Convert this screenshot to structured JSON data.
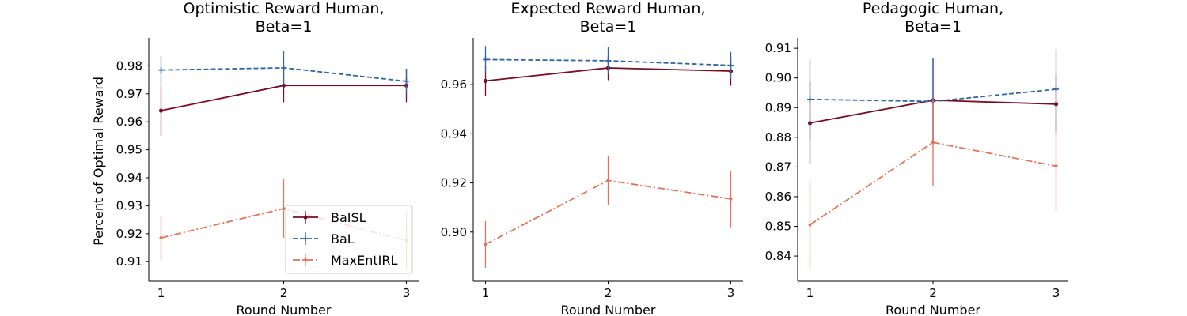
{
  "chart_data": [
    {
      "type": "line",
      "title": [
        "Optimistic Reward Human,",
        "Beta=1"
      ],
      "xlabel": "Round Number",
      "ylabel": "Percent of Optimal Reward",
      "x": [
        1,
        2,
        3
      ],
      "xticks": [
        "1",
        "2",
        "3"
      ],
      "ylim": [
        0.903,
        0.99
      ],
      "yticks": [
        "0.91",
        "0.92",
        "0.93",
        "0.94",
        "0.95",
        "0.96",
        "0.97",
        "0.98"
      ],
      "legend": "lower-right",
      "series": [
        {
          "name": "BaISL",
          "values": [
            0.964,
            0.973,
            0.973
          ],
          "err": [
            0.009,
            0.006,
            0.006
          ]
        },
        {
          "name": "BaL",
          "values": [
            0.9785,
            0.9793,
            0.9745
          ],
          "err": [
            0.005,
            0.006,
            0.0045
          ]
        },
        {
          "name": "MaxEntIRL",
          "values": [
            0.9185,
            0.929,
            0.9175
          ],
          "err": [
            0.008,
            0.0105,
            0.0105
          ]
        }
      ]
    },
    {
      "type": "line",
      "title": [
        "Expected Reward Human,",
        "Beta=1"
      ],
      "xlabel": "Round Number",
      "ylabel": "",
      "x": [
        1,
        2,
        3
      ],
      "xticks": [
        "1",
        "2",
        "3"
      ],
      "ylim": [
        0.88,
        0.979
      ],
      "yticks": [
        "0.90",
        "0.92",
        "0.94",
        "0.96"
      ],
      "legend": "",
      "series": [
        {
          "name": "BaISL",
          "values": [
            0.9615,
            0.9668,
            0.9655
          ],
          "err": [
            0.006,
            0.005,
            0.006
          ]
        },
        {
          "name": "BaL",
          "values": [
            0.9702,
            0.9697,
            0.9678
          ],
          "err": [
            0.0055,
            0.0055,
            0.0055
          ]
        },
        {
          "name": "MaxEntIRL",
          "values": [
            0.895,
            0.921,
            0.9135
          ],
          "err": [
            0.0095,
            0.0098,
            0.0115
          ]
        }
      ]
    },
    {
      "type": "line",
      "title": [
        "Pedagogic Human,",
        "Beta=1"
      ],
      "xlabel": "Round Number",
      "ylabel": "",
      "x": [
        1,
        2,
        3
      ],
      "xticks": [
        "1",
        "2",
        "3"
      ],
      "ylim": [
        0.8315,
        0.9135
      ],
      "yticks": [
        "0.84",
        "0.85",
        "0.86",
        "0.87",
        "0.88",
        "0.89",
        "0.90",
        "0.91"
      ],
      "legend": "",
      "series": [
        {
          "name": "BaISL",
          "values": [
            0.8848,
            0.8925,
            0.8912
          ],
          "err": [
            0.0138,
            0.0138,
            0.0098
          ]
        },
        {
          "name": "BaL",
          "values": [
            0.8928,
            0.8921,
            0.8962
          ],
          "err": [
            0.0135,
            0.0145,
            0.0135
          ]
        },
        {
          "name": "MaxEntIRL",
          "values": [
            0.8505,
            0.8783,
            0.8703
          ],
          "err": [
            0.0148,
            0.0148,
            0.0152
          ]
        }
      ]
    }
  ],
  "colors": {
    "BaISL": "#7b0c22",
    "BaL": "#2e65a3",
    "MaxEntIRL": "#e2735c"
  },
  "line_styles": {
    "BaISL": "solid",
    "BaL": "dashed",
    "MaxEntIRL": "dashdot"
  },
  "markers": {
    "BaISL": "dot",
    "BaL": "plus",
    "MaxEntIRL": "small-dot"
  }
}
